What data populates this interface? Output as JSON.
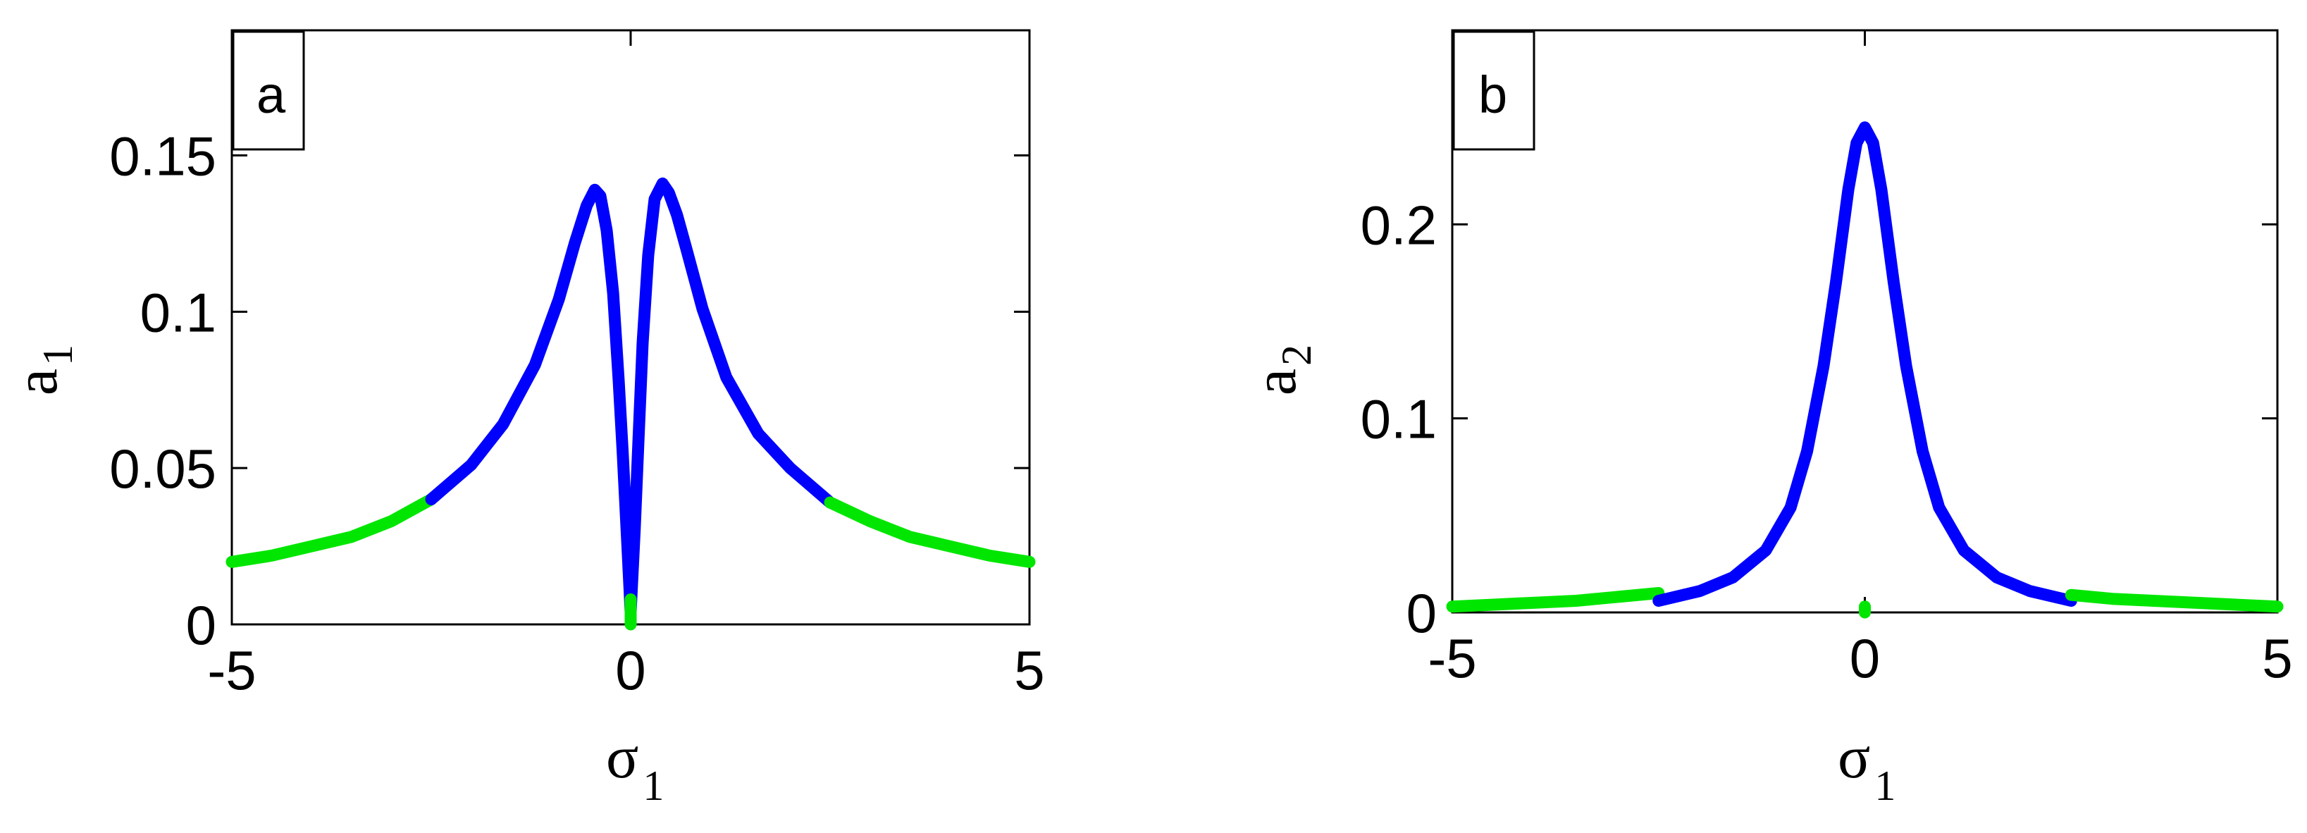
{
  "chart_data": [
    {
      "type": "line",
      "panel_label": "a",
      "xlabel": "σ",
      "xlabel_subscript": "1",
      "ylabel": "a",
      "ylabel_subscript": "1",
      "xlim": [
        -5,
        5
      ],
      "ylim": [
        0,
        0.19
      ],
      "xticks": [
        -5,
        0,
        5
      ],
      "xtick_labels": [
        "-5",
        "0",
        "5"
      ],
      "yticks": [
        0,
        0.05,
        0.1,
        0.15
      ],
      "ytick_labels": [
        "0",
        "0.05",
        "0.1",
        "0.15"
      ],
      "grid": false,
      "series": [
        {
          "color": "#00e600",
          "x": [
            -5,
            -4.5,
            -4,
            -3.5,
            -3,
            -2.5
          ],
          "y": [
            0.02,
            0.022,
            0.025,
            0.028,
            0.033,
            0.04
          ]
        },
        {
          "color": "#0000ff",
          "x": [
            -2.5,
            -2,
            -1.6,
            -1.2,
            -0.9,
            -0.7,
            -0.55,
            -0.45,
            -0.38,
            -0.3,
            -0.22,
            -0.15,
            -0.1,
            -0.05,
            0,
            0.05,
            0.1,
            0.15,
            0.22,
            0.3,
            0.4,
            0.48,
            0.58,
            0.7,
            0.9,
            1.2,
            1.6,
            2,
            2.5
          ],
          "y": [
            0.04,
            0.051,
            0.064,
            0.083,
            0.104,
            0.122,
            0.134,
            0.139,
            0.137,
            0.126,
            0.106,
            0.078,
            0.055,
            0.03,
            0.004,
            0.03,
            0.06,
            0.09,
            0.118,
            0.136,
            0.141,
            0.138,
            0.131,
            0.12,
            0.101,
            0.079,
            0.061,
            0.05,
            0.039
          ]
        },
        {
          "color": "#00e600",
          "x": [
            2.5,
            3,
            3.5,
            4,
            4.5,
            5
          ],
          "y": [
            0.039,
            0.033,
            0.028,
            0.025,
            0.022,
            0.02
          ]
        },
        {
          "color": "#00e600",
          "x": [
            0,
            0
          ],
          "y": [
            0,
            0.008
          ]
        }
      ]
    },
    {
      "type": "line",
      "panel_label": "b",
      "xlabel": "σ",
      "xlabel_subscript": "1",
      "ylabel": "a",
      "ylabel_subscript": "2",
      "xlim": [
        -5,
        5
      ],
      "ylim": [
        0,
        0.3
      ],
      "xticks": [
        -5,
        0,
        5
      ],
      "xtick_labels": [
        "-5",
        "0",
        "5"
      ],
      "yticks": [
        0,
        0.1,
        0.2
      ],
      "ytick_labels": [
        "0",
        "0.1",
        "0.2"
      ],
      "grid": false,
      "series": [
        {
          "color": "#00e600",
          "x": [
            -5,
            -4.5,
            -4,
            -3.5,
            -3,
            -2.5
          ],
          "y": [
            0.003,
            0.004,
            0.005,
            0.006,
            0.008,
            0.01
          ]
        },
        {
          "color": "#0000ff",
          "x": [
            -2.5,
            -2,
            -1.6,
            -1.2,
            -0.9,
            -0.7,
            -0.5,
            -0.35,
            -0.2,
            -0.1,
            0,
            0.1,
            0.2,
            0.35,
            0.5,
            0.7,
            0.9,
            1.2,
            1.6,
            2,
            2.5
          ],
          "y": [
            0.006,
            0.011,
            0.018,
            0.032,
            0.054,
            0.083,
            0.127,
            0.17,
            0.218,
            0.242,
            0.25,
            0.242,
            0.218,
            0.17,
            0.127,
            0.083,
            0.054,
            0.032,
            0.018,
            0.011,
            0.006
          ]
        },
        {
          "color": "#00e600",
          "x": [
            2.5,
            3,
            3.5,
            4,
            4.5,
            5
          ],
          "y": [
            0.009,
            0.007,
            0.006,
            0.005,
            0.004,
            0.003
          ]
        },
        {
          "color": "#00e600",
          "x": [
            0,
            0
          ],
          "y": [
            0,
            0.003
          ]
        }
      ]
    }
  ]
}
